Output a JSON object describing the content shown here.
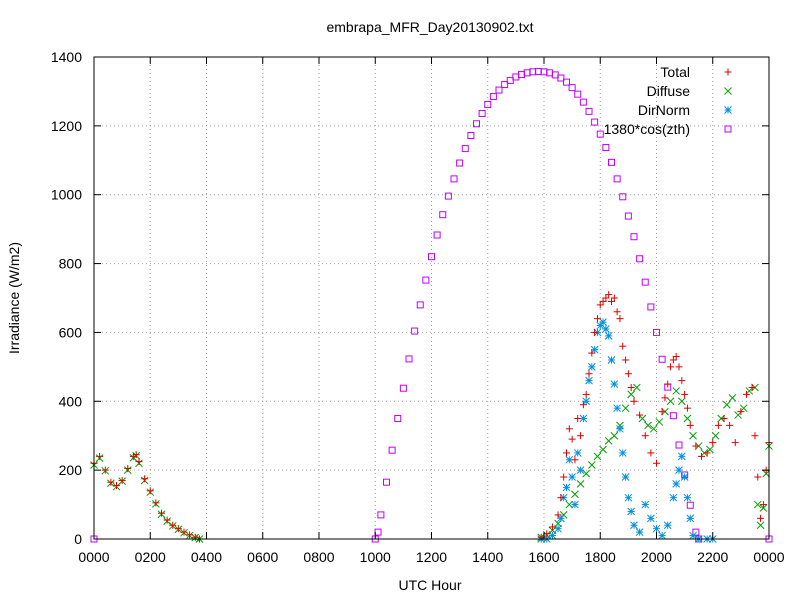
{
  "chart_data": {
    "type": "scatter",
    "title": "embrapa_MFR_Day20130902.txt",
    "xlabel": "UTC Hour",
    "ylabel": "Irradiance (W/m2)",
    "xlim": [
      0,
      24
    ],
    "ylim": [
      0,
      1400
    ],
    "grid": true,
    "legend_position": "top-right",
    "x_ticks": [
      {
        "value": 0,
        "label": "0000"
      },
      {
        "value": 2,
        "label": "0200"
      },
      {
        "value": 4,
        "label": "0400"
      },
      {
        "value": 6,
        "label": "0600"
      },
      {
        "value": 8,
        "label": "0800"
      },
      {
        "value": 10,
        "label": "1000"
      },
      {
        "value": 12,
        "label": "1200"
      },
      {
        "value": 14,
        "label": "1400"
      },
      {
        "value": 16,
        "label": "1600"
      },
      {
        "value": 18,
        "label": "1800"
      },
      {
        "value": 20,
        "label": "2000"
      },
      {
        "value": 22,
        "label": "2200"
      },
      {
        "value": 24,
        "label": "0000"
      }
    ],
    "y_ticks": [
      0,
      200,
      400,
      600,
      800,
      1000,
      1200,
      1400
    ],
    "series": [
      {
        "name": "Total",
        "marker": "plus",
        "color": "#e00000",
        "points": [
          [
            0.0,
            220
          ],
          [
            0.2,
            240
          ],
          [
            0.4,
            200
          ],
          [
            0.6,
            165
          ],
          [
            0.8,
            155
          ],
          [
            1.0,
            170
          ],
          [
            1.2,
            205
          ],
          [
            1.4,
            240
          ],
          [
            1.5,
            245
          ],
          [
            1.6,
            225
          ],
          [
            1.8,
            175
          ],
          [
            2.0,
            140
          ],
          [
            2.2,
            105
          ],
          [
            2.4,
            75
          ],
          [
            2.6,
            55
          ],
          [
            2.8,
            40
          ],
          [
            3.0,
            30
          ],
          [
            3.2,
            20
          ],
          [
            3.4,
            12
          ],
          [
            3.6,
            5
          ],
          [
            3.75,
            0
          ],
          [
            15.9,
            5
          ],
          [
            16.1,
            15
          ],
          [
            16.3,
            35
          ],
          [
            16.5,
            70
          ],
          [
            16.6,
            120
          ],
          [
            16.7,
            180
          ],
          [
            16.8,
            250
          ],
          [
            16.9,
            320
          ],
          [
            17.0,
            290
          ],
          [
            17.1,
            230
          ],
          [
            17.2,
            350
          ],
          [
            17.3,
            300
          ],
          [
            17.4,
            390
          ],
          [
            17.5,
            420
          ],
          [
            17.6,
            480
          ],
          [
            17.7,
            540
          ],
          [
            17.8,
            600
          ],
          [
            17.9,
            640
          ],
          [
            18.0,
            680
          ],
          [
            18.1,
            690
          ],
          [
            18.2,
            700
          ],
          [
            18.3,
            710
          ],
          [
            18.4,
            690
          ],
          [
            18.5,
            700
          ],
          [
            18.6,
            660
          ],
          [
            18.7,
            640
          ],
          [
            18.8,
            560
          ],
          [
            18.9,
            520
          ],
          [
            19.0,
            480
          ],
          [
            19.1,
            440
          ],
          [
            19.2,
            400
          ],
          [
            19.4,
            360
          ],
          [
            19.6,
            300
          ],
          [
            19.8,
            250
          ],
          [
            20.0,
            220
          ],
          [
            20.2,
            370
          ],
          [
            20.3,
            410
          ],
          [
            20.4,
            450
          ],
          [
            20.5,
            500
          ],
          [
            20.6,
            520
          ],
          [
            20.7,
            530
          ],
          [
            20.8,
            500
          ],
          [
            20.9,
            460
          ],
          [
            21.0,
            420
          ],
          [
            21.1,
            380
          ],
          [
            21.2,
            330
          ],
          [
            21.4,
            270
          ],
          [
            21.6,
            240
          ],
          [
            21.8,
            250
          ],
          [
            22.0,
            280
          ],
          [
            22.2,
            330
          ],
          [
            22.4,
            350
          ],
          [
            22.6,
            330
          ],
          [
            22.8,
            280
          ],
          [
            23.0,
            370
          ],
          [
            23.2,
            420
          ],
          [
            23.4,
            440
          ],
          [
            23.5,
            300
          ],
          [
            23.6,
            180
          ],
          [
            23.7,
            60
          ],
          [
            23.8,
            100
          ],
          [
            23.9,
            200
          ],
          [
            24.0,
            280
          ]
        ]
      },
      {
        "name": "Diffuse",
        "marker": "cross",
        "color": "#00a000",
        "points": [
          [
            0.0,
            215
          ],
          [
            0.2,
            235
          ],
          [
            0.4,
            198
          ],
          [
            0.6,
            162
          ],
          [
            0.8,
            152
          ],
          [
            1.0,
            168
          ],
          [
            1.2,
            200
          ],
          [
            1.4,
            236
          ],
          [
            1.5,
            242
          ],
          [
            1.6,
            220
          ],
          [
            1.8,
            170
          ],
          [
            2.0,
            136
          ],
          [
            2.2,
            102
          ],
          [
            2.4,
            72
          ],
          [
            2.6,
            52
          ],
          [
            2.8,
            38
          ],
          [
            3.0,
            28
          ],
          [
            3.2,
            18
          ],
          [
            3.4,
            10
          ],
          [
            3.6,
            4
          ],
          [
            3.75,
            0
          ],
          [
            15.9,
            5
          ],
          [
            16.1,
            12
          ],
          [
            16.3,
            25
          ],
          [
            16.5,
            45
          ],
          [
            16.7,
            70
          ],
          [
            16.9,
            100
          ],
          [
            17.1,
            130
          ],
          [
            17.3,
            160
          ],
          [
            17.5,
            190
          ],
          [
            17.7,
            215
          ],
          [
            17.9,
            240
          ],
          [
            18.1,
            260
          ],
          [
            18.3,
            285
          ],
          [
            18.5,
            300
          ],
          [
            18.7,
            330
          ],
          [
            18.9,
            380
          ],
          [
            19.1,
            420
          ],
          [
            19.3,
            440
          ],
          [
            19.5,
            350
          ],
          [
            19.7,
            330
          ],
          [
            19.9,
            320
          ],
          [
            20.1,
            340
          ],
          [
            20.3,
            370
          ],
          [
            20.5,
            400
          ],
          [
            20.7,
            430
          ],
          [
            20.9,
            400
          ],
          [
            21.1,
            350
          ],
          [
            21.3,
            300
          ],
          [
            21.5,
            270
          ],
          [
            21.7,
            250
          ],
          [
            21.9,
            260
          ],
          [
            22.1,
            300
          ],
          [
            22.3,
            350
          ],
          [
            22.5,
            390
          ],
          [
            22.7,
            410
          ],
          [
            22.9,
            360
          ],
          [
            23.1,
            380
          ],
          [
            23.3,
            430
          ],
          [
            23.5,
            440
          ],
          [
            23.6,
            100
          ],
          [
            23.7,
            40
          ],
          [
            23.8,
            90
          ],
          [
            23.9,
            190
          ],
          [
            24.0,
            270
          ]
        ]
      },
      {
        "name": "DirNorm",
        "marker": "star",
        "color": "#0090e0",
        "points": [
          [
            15.9,
            0
          ],
          [
            16.1,
            0
          ],
          [
            16.3,
            10
          ],
          [
            16.5,
            30
          ],
          [
            16.6,
            60
          ],
          [
            16.7,
            120
          ],
          [
            16.8,
            150
          ],
          [
            16.9,
            230
          ],
          [
            17.0,
            180
          ],
          [
            17.1,
            100
          ],
          [
            17.2,
            250
          ],
          [
            17.3,
            200
          ],
          [
            17.4,
            350
          ],
          [
            17.5,
            400
          ],
          [
            17.6,
            460
          ],
          [
            17.7,
            500
          ],
          [
            17.8,
            550
          ],
          [
            17.9,
            600
          ],
          [
            18.0,
            620
          ],
          [
            18.1,
            630
          ],
          [
            18.2,
            610
          ],
          [
            18.3,
            590
          ],
          [
            18.4,
            520
          ],
          [
            18.5,
            450
          ],
          [
            18.6,
            380
          ],
          [
            18.7,
            320
          ],
          [
            18.8,
            250
          ],
          [
            18.9,
            180
          ],
          [
            19.0,
            120
          ],
          [
            19.1,
            80
          ],
          [
            19.2,
            40
          ],
          [
            19.4,
            20
          ],
          [
            19.6,
            100
          ],
          [
            19.8,
            60
          ],
          [
            20.0,
            30
          ],
          [
            20.2,
            10
          ],
          [
            20.4,
            40
          ],
          [
            20.6,
            120
          ],
          [
            20.7,
            160
          ],
          [
            20.8,
            200
          ],
          [
            20.9,
            240
          ],
          [
            21.0,
            180
          ],
          [
            21.1,
            120
          ],
          [
            21.2,
            60
          ],
          [
            21.3,
            10
          ],
          [
            21.5,
            0
          ],
          [
            21.8,
            0
          ],
          [
            22.0,
            0
          ]
        ]
      },
      {
        "name": "1380*cos(zth)",
        "marker": "square",
        "color": "#c000ff",
        "points": [
          [
            0,
            0
          ],
          [
            10,
            0
          ],
          [
            10.1,
            20
          ],
          [
            10.2,
            70
          ],
          [
            10.4,
            165
          ],
          [
            10.6,
            258
          ],
          [
            10.8,
            350
          ],
          [
            11.0,
            438
          ],
          [
            11.2,
            523
          ],
          [
            11.4,
            604
          ],
          [
            11.6,
            680
          ],
          [
            11.8,
            752
          ],
          [
            12.0,
            820
          ],
          [
            12.2,
            883
          ],
          [
            12.4,
            942
          ],
          [
            12.6,
            996
          ],
          [
            12.8,
            1046
          ],
          [
            13.0,
            1092
          ],
          [
            13.2,
            1134
          ],
          [
            13.4,
            1172
          ],
          [
            13.6,
            1206
          ],
          [
            13.8,
            1236
          ],
          [
            14.0,
            1262
          ],
          [
            14.2,
            1285
          ],
          [
            14.4,
            1304
          ],
          [
            14.6,
            1320
          ],
          [
            14.8,
            1332
          ],
          [
            15.0,
            1342
          ],
          [
            15.2,
            1349
          ],
          [
            15.4,
            1354
          ],
          [
            15.6,
            1357
          ],
          [
            15.8,
            1358
          ],
          [
            16.0,
            1357
          ],
          [
            16.2,
            1354
          ],
          [
            16.4,
            1348
          ],
          [
            16.6,
            1339
          ],
          [
            16.8,
            1327
          ],
          [
            17.0,
            1311
          ],
          [
            17.2,
            1292
          ],
          [
            17.4,
            1269
          ],
          [
            17.6,
            1242
          ],
          [
            17.8,
            1211
          ],
          [
            18.0,
            1176
          ],
          [
            18.2,
            1137
          ],
          [
            18.4,
            1094
          ],
          [
            18.6,
            1046
          ],
          [
            18.8,
            994
          ],
          [
            19.0,
            938
          ],
          [
            19.2,
            878
          ],
          [
            19.4,
            814
          ],
          [
            19.6,
            746
          ],
          [
            19.8,
            674
          ],
          [
            20.0,
            600
          ],
          [
            20.2,
            522
          ],
          [
            20.4,
            441
          ],
          [
            20.6,
            358
          ],
          [
            20.8,
            273
          ],
          [
            21.0,
            186
          ],
          [
            21.2,
            98
          ],
          [
            21.4,
            20
          ],
          [
            21.5,
            0
          ],
          [
            24,
            0
          ]
        ]
      }
    ]
  }
}
